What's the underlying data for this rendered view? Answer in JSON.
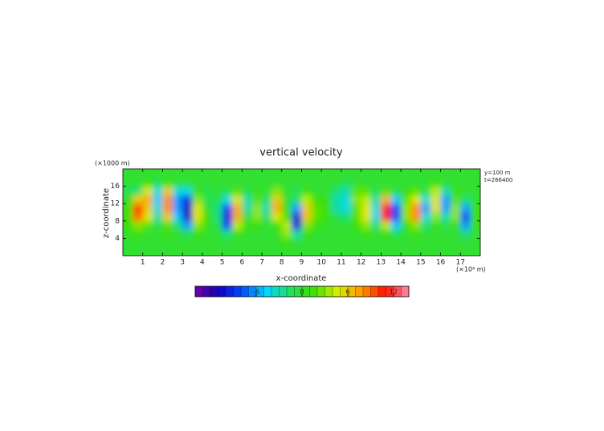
{
  "chart_data": {
    "type": "heatmap",
    "title": "vertical velocity",
    "x_label": "x-coordinate",
    "x_unit": "(×10⁴ m)",
    "y_label": "z-coordinate",
    "y_unit": "(×1000 m)",
    "annotations": [
      "y=100 m",
      "t=266400"
    ],
    "xlim": [
      0,
      18
    ],
    "ylim": [
      0,
      20
    ],
    "xticks": [
      1,
      2,
      3,
      4,
      5,
      6,
      7,
      8,
      9,
      10,
      11,
      12,
      13,
      14,
      15,
      16,
      17
    ],
    "yticks": [
      4,
      8,
      12,
      16
    ],
    "x": [
      0.25,
      0.75,
      1.25,
      1.75,
      2.25,
      2.75,
      3.25,
      3.75,
      4.25,
      4.75,
      5.25,
      5.75,
      6.25,
      6.75,
      7.25,
      7.75,
      8.25,
      8.75,
      9.25,
      9.75,
      10.25,
      10.75,
      11.25,
      11.75,
      12.25,
      12.75,
      13.25,
      13.75,
      14.25,
      14.75,
      15.25,
      15.75,
      16.25,
      16.75,
      17.25,
      17.75
    ],
    "z": [
      1,
      3,
      5,
      7,
      9,
      11,
      13,
      15,
      17,
      19
    ],
    "values": [
      [
        0,
        0,
        0,
        0,
        0,
        0,
        0,
        0,
        0,
        0,
        0,
        0,
        0,
        0,
        0,
        0,
        0,
        0,
        0,
        0,
        0,
        0,
        0,
        0,
        0,
        0,
        0,
        0,
        0,
        0,
        0,
        0,
        0,
        0,
        0,
        0
      ],
      [
        0,
        0,
        0,
        0,
        0,
        0,
        0,
        0,
        0,
        0,
        0,
        0,
        0,
        0,
        0,
        0,
        1,
        0,
        0,
        0,
        0,
        0,
        0,
        0,
        0,
        0,
        0,
        0,
        0,
        0,
        0,
        0,
        0,
        0,
        0,
        0
      ],
      [
        0,
        1,
        0,
        0,
        1,
        0,
        -1,
        1,
        0,
        0,
        -2,
        1,
        0,
        0,
        0,
        0,
        3,
        -3,
        1,
        0,
        0,
        0,
        0,
        0,
        1,
        0,
        1,
        -1,
        0,
        1,
        0,
        0,
        0,
        0,
        -2,
        0
      ],
      [
        1,
        3,
        2,
        -1,
        2,
        -2,
        -6,
        3,
        1,
        -1,
        -8,
        4,
        1,
        1,
        0,
        1,
        4,
        -10,
        3,
        1,
        0,
        0,
        0,
        1,
        3,
        -2,
        4,
        -5,
        1,
        3,
        -2,
        1,
        -1,
        1,
        -6,
        1
      ],
      [
        1,
        9,
        5,
        -3,
        6,
        -5,
        -11,
        5,
        1,
        -2,
        -10,
        7,
        -1,
        3,
        -2,
        5,
        2,
        -10,
        6,
        2,
        1,
        -1,
        -2,
        2,
        5,
        -4,
        11,
        -8,
        3,
        8,
        -4,
        3,
        -3,
        3,
        -8,
        1
      ],
      [
        1,
        10,
        6,
        -4,
        8,
        -6,
        -11,
        5,
        0,
        -2,
        -8,
        7,
        -3,
        3,
        -3,
        7,
        1,
        -6,
        6,
        2,
        1,
        -3,
        -4,
        2,
        5,
        -4,
        11,
        -8,
        3,
        8,
        -6,
        5,
        -6,
        3,
        -6,
        1
      ],
      [
        0,
        6,
        7,
        -5,
        8,
        -6,
        -9,
        3,
        -1,
        -1,
        -4,
        5,
        -3,
        2,
        -2,
        6,
        0,
        -2,
        4,
        1,
        1,
        -3,
        -4,
        3,
        4,
        -3,
        7,
        -5,
        2,
        5,
        -4,
        5,
        -6,
        2,
        -2,
        0
      ],
      [
        -1,
        -2,
        5,
        -4,
        6,
        -4,
        -4,
        1,
        -1,
        0,
        -1,
        2,
        -1,
        1,
        0,
        3,
        0,
        -1,
        1,
        0,
        0,
        -2,
        -3,
        2,
        2,
        -1,
        2,
        -1,
        1,
        2,
        -1,
        4,
        -3,
        1,
        0,
        0
      ],
      [
        0,
        0,
        1,
        -1,
        1,
        0,
        0,
        0,
        0,
        0,
        0,
        0,
        0,
        0,
        0,
        0,
        0,
        0,
        0,
        0,
        0,
        0,
        -1,
        0,
        0,
        0,
        0,
        0,
        0,
        0,
        0,
        1,
        0,
        0,
        0,
        0
      ],
      [
        0,
        0,
        0,
        0,
        0,
        0,
        0,
        0,
        0,
        0,
        0,
        0,
        0,
        0,
        0,
        0,
        0,
        0,
        0,
        0,
        0,
        0,
        0,
        0,
        0,
        0,
        0,
        0,
        0,
        0,
        0,
        0,
        0,
        0,
        0,
        0
      ]
    ],
    "clim": [
      -14,
      14
    ],
    "cticks": [
      -12,
      -6,
      0,
      6,
      12
    ],
    "colormap": [
      "#7a00a8",
      "#1000c8",
      "#0050ff",
      "#00d8ff",
      "#20e060",
      "#40e000",
      "#d8f000",
      "#ff9800",
      "#ff1000",
      "#ff90b0"
    ]
  }
}
